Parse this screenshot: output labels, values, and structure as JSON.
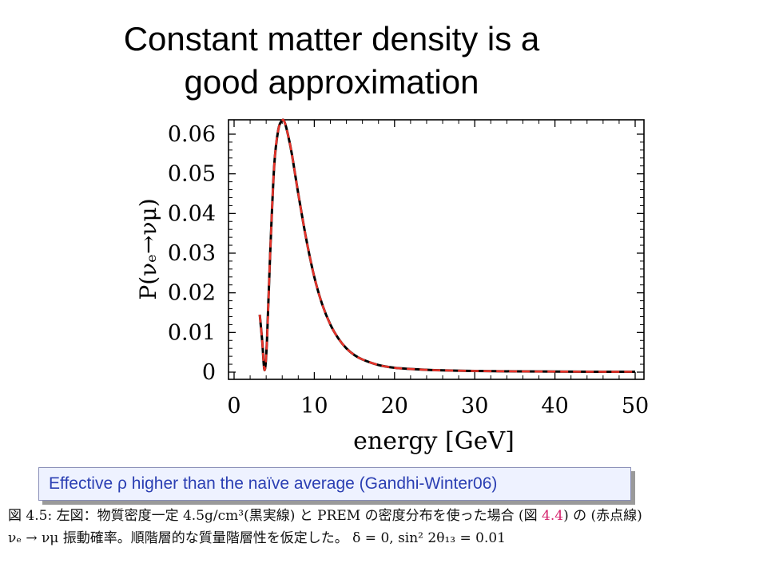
{
  "slide": {
    "title_line1": "Constant matter density is a",
    "title_line2": "good approximation"
  },
  "callout": {
    "text": "Effective ρ higher than the naïve average (Gandhi-Winter06)"
  },
  "caption": {
    "line1_a": "図 4.5: 左図：物質密度一定 4.5g/cm³(黒実線) と PREM の密度分布を使った場合 (図 ",
    "line1_ref": "4.4",
    "line1_b": ") の (赤点線)",
    "line2": "νₑ → νμ 振動確率。順階層的な質量階層性を仮定した。 δ = 0, sin² 2θ₁₃ = 0.01"
  },
  "colors": {
    "constant_density_line": "#000000",
    "prem_line": "#e8332a",
    "callout_text": "#2b3fb3",
    "caption_ref": "#d6246e"
  },
  "chart_data": {
    "type": "line",
    "xlabel": "energy [GeV]",
    "ylabel": "P(νₑ→νμ)",
    "xlim": [
      0,
      50
    ],
    "ylim": [
      0,
      0.065
    ],
    "x_ticks": [
      0,
      10,
      20,
      30,
      40,
      50
    ],
    "y_ticks": [
      0,
      0.01,
      0.02,
      0.03,
      0.04,
      0.05,
      0.06
    ],
    "y_tick_labels": [
      "0",
      "0.01",
      "0.02",
      "0.03",
      "0.04",
      "0.05",
      "0.06"
    ],
    "grid": false,
    "x": [
      3.2,
      3.5,
      3.8,
      4.1,
      4.5,
      5.0,
      5.5,
      6.0,
      6.3,
      6.7,
      7.2,
      8.0,
      9.0,
      10.0,
      11.0,
      12.0,
      13.0,
      14.0,
      15.0,
      16.0,
      18.0,
      20.0,
      22.0,
      25.0,
      30.0,
      35.0,
      40.0,
      45.0,
      50.0
    ],
    "series": [
      {
        "style": "solid",
        "color": "#000000",
        "values": [
          0.0145,
          0.008,
          0.0005,
          0.008,
          0.03,
          0.052,
          0.061,
          0.0635,
          0.063,
          0.06,
          0.055,
          0.045,
          0.0335,
          0.024,
          0.017,
          0.012,
          0.0085,
          0.006,
          0.0043,
          0.0032,
          0.0018,
          0.0011,
          0.0008,
          0.0005,
          0.0003,
          0.0002,
          0.00015,
          0.0001,
          0.0001
        ]
      },
      {
        "style": "dashed",
        "color": "#e8332a",
        "values": [
          0.0145,
          0.008,
          0.0005,
          0.008,
          0.03,
          0.052,
          0.061,
          0.0635,
          0.063,
          0.06,
          0.055,
          0.045,
          0.0335,
          0.024,
          0.017,
          0.012,
          0.0085,
          0.006,
          0.0043,
          0.0032,
          0.0018,
          0.0011,
          0.0008,
          0.0005,
          0.0003,
          0.0002,
          0.00015,
          0.0001,
          0.0001
        ]
      }
    ]
  }
}
